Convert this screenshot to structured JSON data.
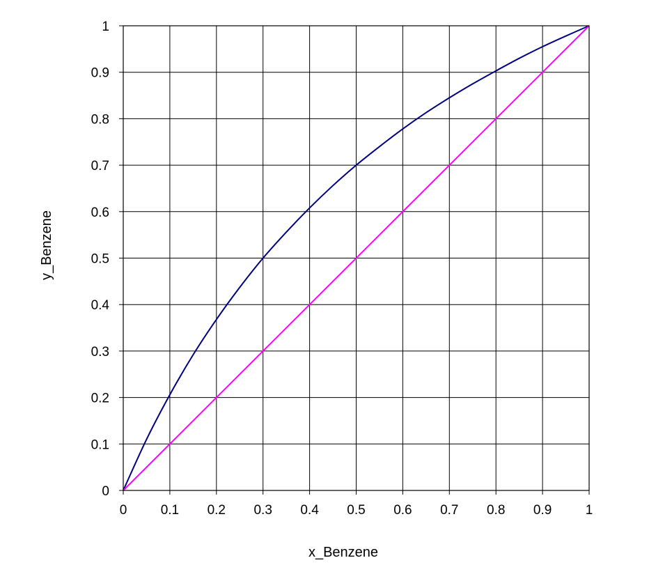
{
  "chart_data": {
    "type": "line",
    "title": "",
    "xlabel": "x_Benzene",
    "ylabel": "y_Benzene",
    "xlim": [
      0,
      1
    ],
    "ylim": [
      0,
      1
    ],
    "xticks": [
      "0",
      "0.1",
      "0.2",
      "0.3",
      "0.4",
      "0.5",
      "0.6",
      "0.7",
      "0.8",
      "0.9",
      "1"
    ],
    "yticks": [
      "0",
      "0.1",
      "0.2",
      "0.3",
      "0.4",
      "0.5",
      "0.6",
      "0.7",
      "0.8",
      "0.9",
      "1"
    ],
    "grid": true,
    "legend": "none",
    "series": [
      {
        "color": "#000080",
        "x": [
          0,
          0.05,
          0.1,
          0.15,
          0.2,
          0.25,
          0.3,
          0.35,
          0.4,
          0.45,
          0.5,
          0.55,
          0.6,
          0.65,
          0.7,
          0.75,
          0.8,
          0.85,
          0.9,
          0.95,
          1
        ],
        "y": [
          0,
          0.11,
          0.206,
          0.292,
          0.368,
          0.437,
          0.5,
          0.556,
          0.608,
          0.656,
          0.7,
          0.74,
          0.778,
          0.813,
          0.845,
          0.875,
          0.903,
          0.93,
          0.955,
          0.978,
          1
        ]
      },
      {
        "color": "#FF00FF",
        "x": [
          0,
          1
        ],
        "y": [
          0,
          1
        ]
      }
    ]
  }
}
